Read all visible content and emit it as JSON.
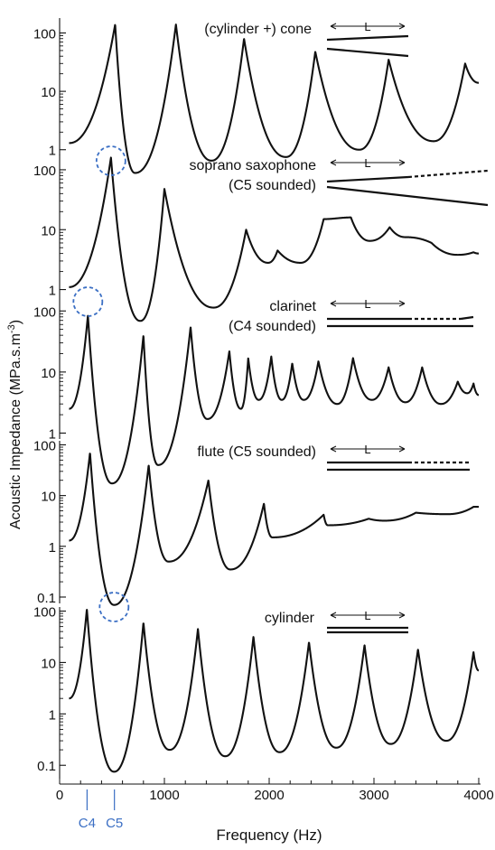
{
  "colors": {
    "curve": "#111111",
    "axis": "#111111",
    "note": "#3b6fc4"
  },
  "figure": {
    "ylabel_main": "Acoustic Impedance (MPa.s.m",
    "ylabel_sup": "-3",
    "ylabel_close": ")",
    "xlabel": "Frequency (Hz)",
    "bore_length_symbol": "L",
    "note_labels": [
      {
        "text": "C4",
        "freq": 262
      },
      {
        "text": "C5",
        "freq": 523
      }
    ]
  },
  "chart_data": [
    {
      "type": "line",
      "title": "(cylinder +) cone",
      "title2": "",
      "bore": "cone",
      "xlim": [
        0,
        4000
      ],
      "log_y": true,
      "ylim": [
        0.8,
        180
      ],
      "yticks": [
        1,
        10,
        100
      ],
      "ytick_labels": [
        "1",
        "10",
        "100"
      ],
      "series": [
        {
          "peaks": [
            [
              530,
              140
            ],
            [
              1110,
              140
            ],
            [
              1760,
              80
            ],
            [
              2440,
              48
            ],
            [
              3140,
              35
            ],
            [
              3870,
              30
            ]
          ],
          "troughs": [
            [
              90,
              1.3
            ],
            [
              720,
              0.4
            ],
            [
              1450,
              0.65
            ],
            [
              2160,
              0.75
            ],
            [
              2860,
              1.0
            ],
            [
              3570,
              1.4
            ],
            [
              4000,
              14
            ]
          ],
          "start": 1.3
        }
      ]
    },
    {
      "type": "line",
      "title": "soprano saxophone",
      "title2": "(C5 sounded)",
      "bore": "cone-dashed",
      "xlim": [
        0,
        4000
      ],
      "log_y": true,
      "ylim": [
        0.8,
        180
      ],
      "yticks": [
        1,
        10,
        100
      ],
      "ytick_labels": [
        "1",
        "10",
        "100"
      ],
      "highlight_freq": 490,
      "series": [
        {
          "peaks": [
            [
              490,
              160
            ],
            [
              1000,
              48
            ],
            [
              1780,
              10
            ],
            [
              2080,
              4.5
            ],
            [
              2520,
              15
            ],
            [
              2780,
              16
            ],
            [
              3150,
              11
            ],
            [
              3550,
              6
            ],
            [
              3950,
              4.2
            ]
          ],
          "troughs": [
            [
              90,
              1.1
            ],
            [
              770,
              0.3
            ],
            [
              1470,
              0.5
            ],
            [
              1990,
              2.8
            ],
            [
              2300,
              2.8
            ],
            [
              2960,
              6.5
            ],
            [
              3300,
              7.5
            ],
            [
              3800,
              3.8
            ],
            [
              4000,
              4.0
            ]
          ],
          "start": 1.1
        }
      ]
    },
    {
      "type": "line",
      "title": "clarinet",
      "title2": "(C4 sounded)",
      "bore": "cylinder-dashed",
      "xlim": [
        0,
        4000
      ],
      "log_y": true,
      "ylim": [
        0.8,
        180
      ],
      "yticks": [
        1,
        10,
        100
      ],
      "ytick_labels": [
        "1",
        "10",
        "100"
      ],
      "highlight_freq": 270,
      "series": [
        {
          "peaks": [
            [
              270,
              85
            ],
            [
              800,
              40
            ],
            [
              1250,
              55
            ],
            [
              1620,
              22
            ],
            [
              1800,
              17
            ],
            [
              2020,
              18
            ],
            [
              2220,
              14
            ],
            [
              2470,
              15
            ],
            [
              2800,
              17
            ],
            [
              3140,
              12
            ],
            [
              3460,
              12
            ],
            [
              3800,
              7
            ],
            [
              3950,
              6.5
            ]
          ],
          "troughs": [
            [
              90,
              2.5
            ],
            [
              500,
              0.15
            ],
            [
              940,
              0.3
            ],
            [
              1410,
              1.7
            ],
            [
              1730,
              2.5
            ],
            [
              1900,
              3.5
            ],
            [
              2120,
              3.5
            ],
            [
              2330,
              3.5
            ],
            [
              2650,
              3.0
            ],
            [
              2980,
              3.5
            ],
            [
              3300,
              3.2
            ],
            [
              3640,
              3.0
            ],
            [
              3890,
              4.5
            ],
            [
              4000,
              4.2
            ]
          ],
          "start": 2.5
        }
      ]
    },
    {
      "type": "line",
      "title": "flute (C5 sounded)",
      "title2": "",
      "bore": "open-dashed",
      "xlim": [
        0,
        4000
      ],
      "log_y": true,
      "ylim": [
        0.075,
        120
      ],
      "yticks": [
        0.1,
        1,
        10,
        100
      ],
      "ytick_labels": [
        "0.1",
        "1",
        "10",
        "100"
      ],
      "highlight_freq": 520,
      "series": [
        {
          "peaks": [
            [
              290,
              70
            ],
            [
              850,
              40
            ],
            [
              1420,
              20
            ],
            [
              1950,
              7
            ],
            [
              2520,
              4.2
            ],
            [
              2950,
              3.5
            ],
            [
              3400,
              4.6
            ],
            [
              3950,
              6.0
            ]
          ],
          "troughs": [
            [
              90,
              1.3
            ],
            [
              520,
              0.07
            ],
            [
              1040,
              0.5
            ],
            [
              1630,
              0.35
            ],
            [
              2030,
              1.5
            ],
            [
              2560,
              2.6
            ],
            [
              3100,
              3.2
            ],
            [
              3700,
              4.3
            ],
            [
              4000,
              6.0
            ]
          ],
          "start": 1.3
        }
      ]
    },
    {
      "type": "line",
      "title": "cylinder",
      "title2": "",
      "bore": "cylinder",
      "xlim": [
        0,
        4000
      ],
      "log_y": true,
      "ylim": [
        0.055,
        120
      ],
      "yticks": [
        0.1,
        1,
        10,
        100
      ],
      "ytick_labels": [
        "0.1",
        "1",
        "10",
        "100"
      ],
      "series": [
        {
          "peaks": [
            [
              260,
              110
            ],
            [
              800,
              60
            ],
            [
              1320,
              45
            ],
            [
              1850,
              32
            ],
            [
              2380,
              25
            ],
            [
              2910,
              22
            ],
            [
              3420,
              18
            ],
            [
              3950,
              16
            ]
          ],
          "troughs": [
            [
              90,
              2.0
            ],
            [
              520,
              0.075
            ],
            [
              1050,
              0.2
            ],
            [
              1580,
              0.15
            ],
            [
              2100,
              0.18
            ],
            [
              2640,
              0.22
            ],
            [
              3160,
              0.26
            ],
            [
              3690,
              0.3
            ],
            [
              4000,
              7.0
            ]
          ],
          "start": 2.0
        }
      ]
    }
  ],
  "x_axis": {
    "ticks": [
      0,
      1000,
      2000,
      3000,
      4000
    ],
    "tick_labels": [
      "0",
      "1000",
      "2000",
      "3000",
      "4000"
    ]
  }
}
